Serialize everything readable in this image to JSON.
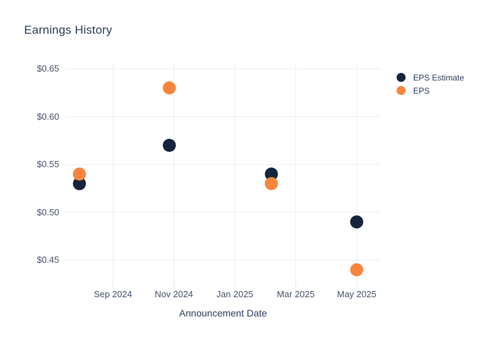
{
  "title": "Earnings History",
  "colors": {
    "background": "#FFFFFF",
    "grid": "#EAEFF5",
    "tick_mark": "#D9DFE8",
    "title_text": "#2C3E5C",
    "tick_text": "#44546D",
    "eps_estimate": "#14253D",
    "eps": "#F7853E"
  },
  "legend": {
    "items": [
      {
        "label": "EPS Estimate",
        "color": "#14253D"
      },
      {
        "label": "EPS",
        "color": "#F7853E"
      }
    ]
  },
  "chart_data": {
    "type": "scatter",
    "title": "Earnings History",
    "xlabel": "Announcement Date",
    "ylabel": "",
    "grid": true,
    "legend_position": "outside-top-right",
    "x_unit": "months (0 = Aug 2024)",
    "xlim": [
      -0.56,
      9.79
    ],
    "ylim": [
      0.425,
      0.655
    ],
    "marker_radius_px": 9.5,
    "x_ticks": [
      {
        "label": "Sep 2024",
        "month": 1
      },
      {
        "label": "Nov 2024",
        "month": 3
      },
      {
        "label": "Jan 2025",
        "month": 5
      },
      {
        "label": "Mar 2025",
        "month": 7
      },
      {
        "label": "May 2025",
        "month": 9
      }
    ],
    "y_ticks": [
      {
        "label": "$0.65",
        "value": 0.65
      },
      {
        "label": "$0.60",
        "value": 0.6
      },
      {
        "label": "$0.55",
        "value": 0.55
      },
      {
        "label": "$0.50",
        "value": 0.5
      },
      {
        "label": "$0.45",
        "value": 0.45
      }
    ],
    "series": [
      {
        "name": "EPS Estimate",
        "color": "#14253D",
        "points": [
          {
            "date": "Aug 2024",
            "month": -0.1,
            "value": 0.53
          },
          {
            "date": "Nov 2024",
            "month": 2.85,
            "value": 0.57
          },
          {
            "date": "Feb 2025",
            "month": 6.2,
            "value": 0.54
          },
          {
            "date": "May 2025",
            "month": 9.0,
            "value": 0.49
          }
        ]
      },
      {
        "name": "EPS",
        "color": "#F7853E",
        "points": [
          {
            "date": "Aug 2024",
            "month": -0.1,
            "value": 0.54
          },
          {
            "date": "Nov 2024",
            "month": 2.85,
            "value": 0.63
          },
          {
            "date": "Feb 2025",
            "month": 6.2,
            "value": 0.53
          },
          {
            "date": "May 2025",
            "month": 9.0,
            "value": 0.44
          }
        ]
      }
    ]
  }
}
